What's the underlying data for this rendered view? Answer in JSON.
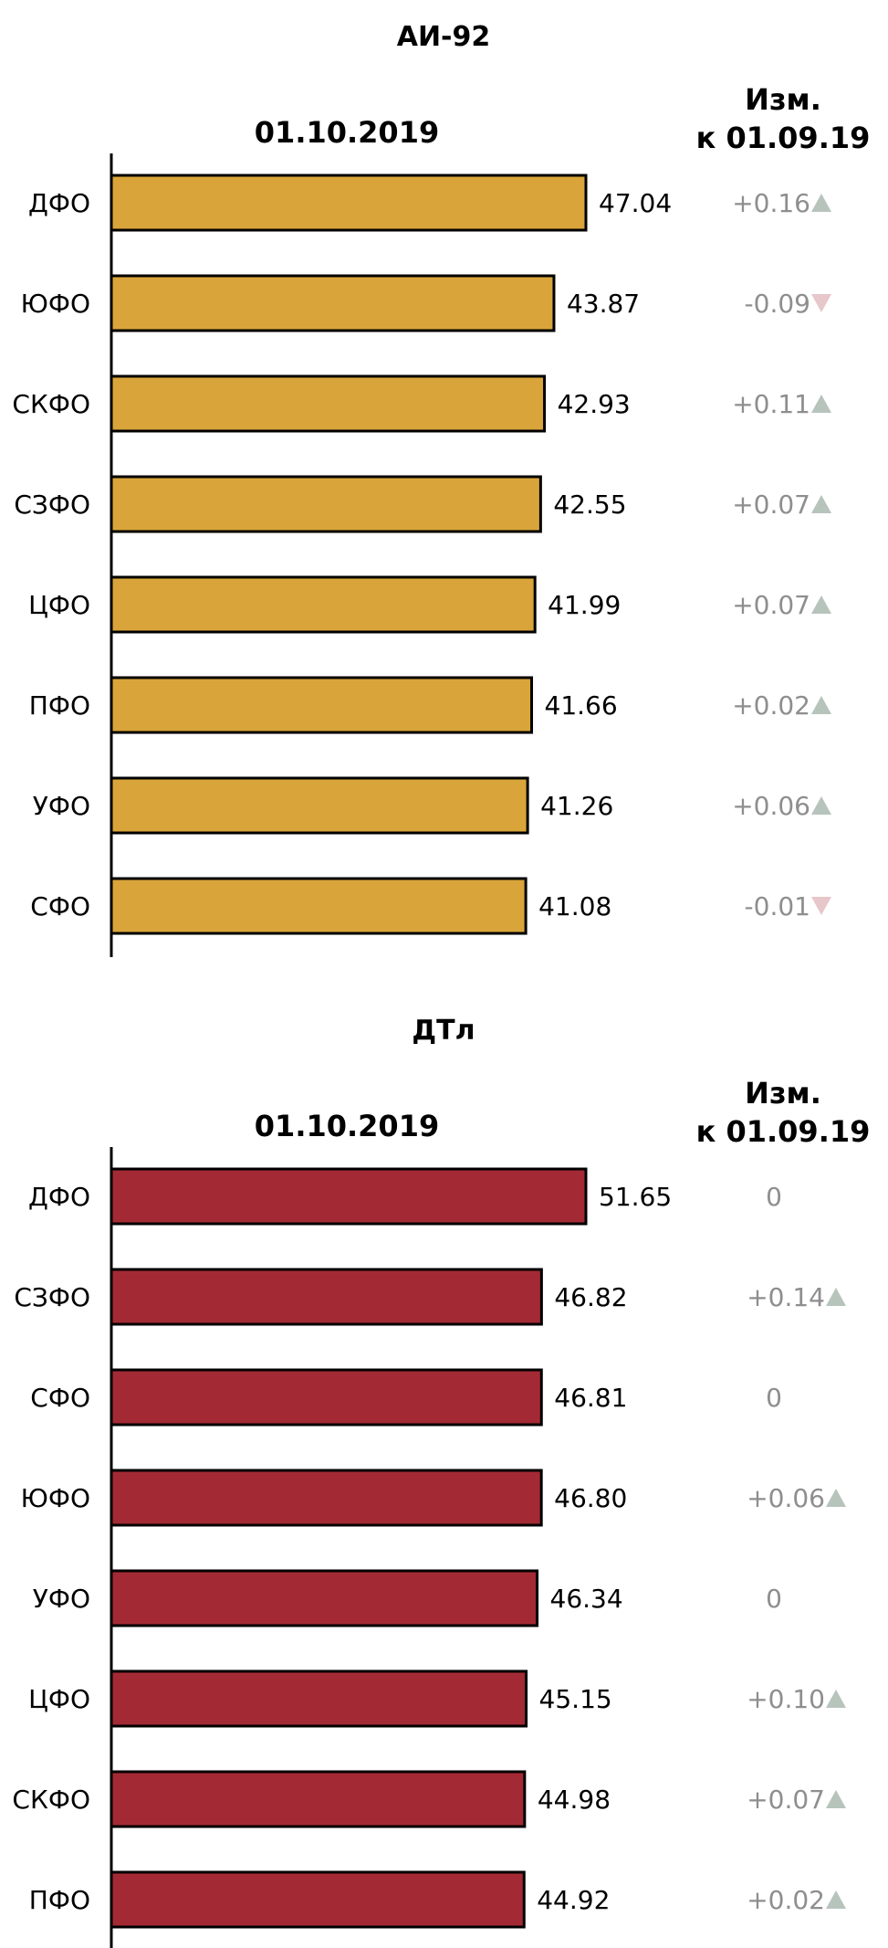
{
  "chart_data": [
    {
      "type": "bar",
      "title": "АИ-92",
      "subtitle": "01.10.2019",
      "change_header": [
        "Изм.",
        "к 01.09.19"
      ],
      "bar_color": "#D9A53A",
      "up_color": "#B7C4BC",
      "down_color": "#E7C7C9",
      "change_text_color": "#8E8E8E",
      "categories": [
        "ДФО",
        "ЮФО",
        "СКФО",
        "СЗФО",
        "ЦФО",
        "ПФО",
        "УФО",
        "СФО"
      ],
      "values": [
        47.04,
        43.87,
        42.93,
        42.55,
        41.99,
        41.66,
        41.26,
        41.08
      ],
      "value_labels": [
        "47.04",
        "43.87",
        "42.93",
        "42.55",
        "41.99",
        "41.66",
        "41.26",
        "41.08"
      ],
      "changes": [
        "+0.16",
        "-0.09",
        "+0.11",
        "+0.07",
        "+0.07",
        "+0.02",
        "+0.06",
        "-0.01"
      ],
      "change_dir": [
        "up",
        "down",
        "up",
        "up",
        "up",
        "up",
        "up",
        "down"
      ],
      "grid": false,
      "legend": "none"
    },
    {
      "type": "bar",
      "title": "ДТл",
      "subtitle": "01.10.2019",
      "change_header": [
        "Изм.",
        "к 01.09.19"
      ],
      "bar_color": "#A32A35",
      "up_color": "#B7C4BC",
      "down_color": "#E7C7C9",
      "change_text_color": "#8E8E8E",
      "categories": [
        "ДФО",
        "СЗФО",
        "СФО",
        "ЮФО",
        "УФО",
        "ЦФО",
        "СКФО",
        "ПФО"
      ],
      "values": [
        51.65,
        46.82,
        46.81,
        46.8,
        46.34,
        45.15,
        44.98,
        44.92
      ],
      "value_labels": [
        "51.65",
        "46.82",
        "46.81",
        "46.80",
        "46.34",
        "45.15",
        "44.98",
        "44.92"
      ],
      "changes": [
        "0",
        "+0.14",
        "0",
        "+0.06",
        "0",
        "+0.10",
        "+0.07",
        "+0.02"
      ],
      "change_dir": [
        "none",
        "up",
        "none",
        "up",
        "none",
        "up",
        "up",
        "up"
      ],
      "grid": false,
      "legend": "none"
    }
  ]
}
